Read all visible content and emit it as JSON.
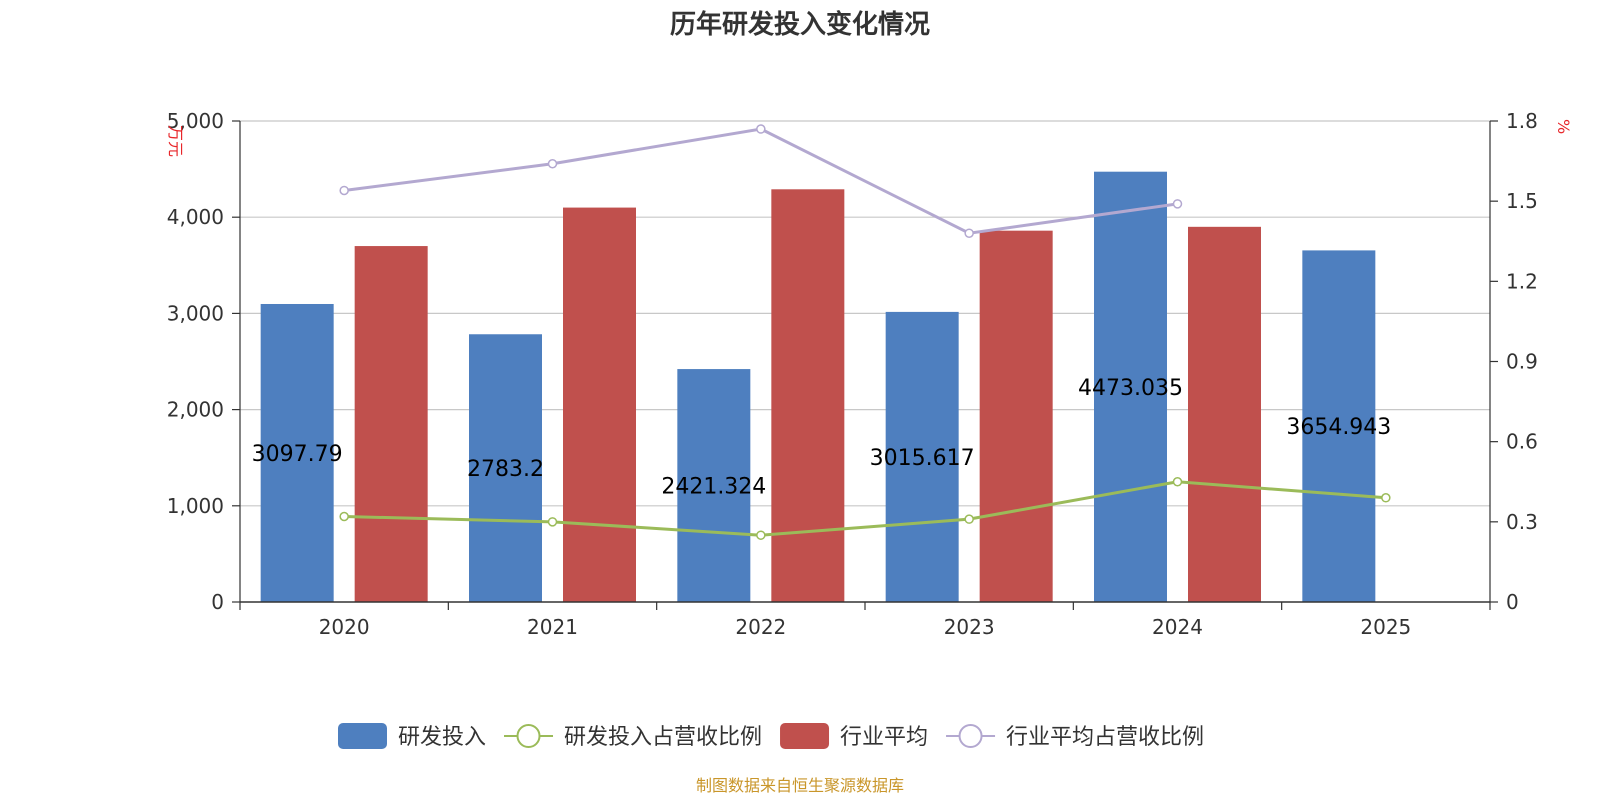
{
  "chart_data": {
    "type": "bar",
    "title": "历年研发投入变化情况",
    "categories": [
      "2020",
      "2021",
      "2022",
      "2023",
      "2024",
      "2025"
    ],
    "left_axis": {
      "unit": "万元",
      "ylim": [
        0,
        5000
      ],
      "ticks": [
        0,
        1000,
        2000,
        3000,
        4000,
        5000
      ],
      "tick_labels": [
        "0",
        "1,000",
        "2,000",
        "3,000",
        "4,000",
        "5,000"
      ]
    },
    "right_axis": {
      "unit": "%",
      "ylim": [
        0,
        1.8
      ],
      "ticks": [
        0,
        0.3,
        0.6,
        0.9,
        1.2,
        1.5,
        1.8
      ],
      "tick_labels": [
        "0",
        "0.3",
        "0.6",
        "0.9",
        "1.2",
        "1.5",
        "1.8"
      ]
    },
    "series": [
      {
        "name": "研发投入",
        "type": "bar",
        "axis": "left",
        "color": "#4e7fbf",
        "values": [
          3097.79,
          2783.2,
          2421.324,
          3015.617,
          4473.035,
          3654.943
        ],
        "labels": [
          "3097.79",
          "2783.2",
          "2421.324",
          "3015.617",
          "4473.035",
          "3654.943"
        ]
      },
      {
        "name": "研发投入占营收比例",
        "type": "line",
        "axis": "right",
        "color": "#9bbb59",
        "values": [
          0.32,
          0.3,
          0.25,
          0.31,
          0.45,
          0.39
        ]
      },
      {
        "name": "行业平均",
        "type": "bar",
        "axis": "left",
        "color": "#c0504d",
        "values": [
          3700,
          4100,
          4290,
          3860,
          3900,
          null
        ]
      },
      {
        "name": "行业平均占营收比例",
        "type": "line",
        "axis": "right",
        "color": "#b3a8d0",
        "values": [
          1.54,
          1.64,
          1.77,
          1.38,
          1.49,
          null
        ]
      }
    ],
    "legend_position": "bottom",
    "source": "制图数据来自恒生聚源数据库"
  }
}
